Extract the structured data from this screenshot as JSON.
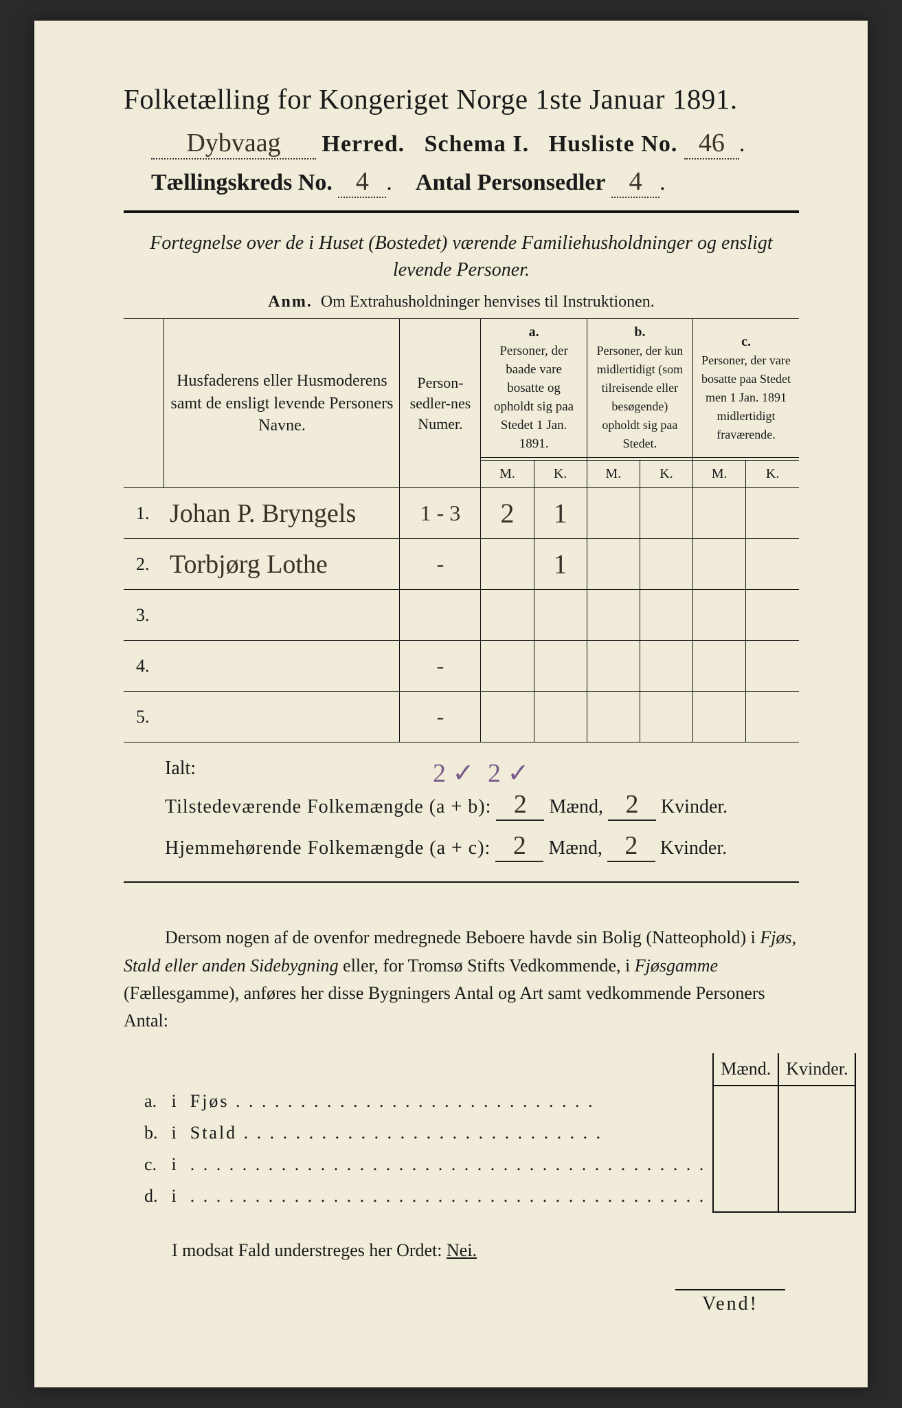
{
  "title": "Folketælling for Kongeriget Norge 1ste Januar 1891.",
  "header": {
    "herred_value": "Dybvaag",
    "herred_label": "Herred.",
    "schema_label": "Schema I.",
    "husliste_label": "Husliste No.",
    "husliste_no": "46",
    "kreds_label": "Tællingskreds No.",
    "kreds_no": "4",
    "antal_label": "Antal Personsedler",
    "antal_value": "4"
  },
  "subtitle": "Fortegnelse over de i Huset (Bostedet) værende Familiehusholdninger og ensligt levende Personer.",
  "anm_label": "Anm.",
  "anm_text": "Om Extrahusholdninger henvises til Instruktionen.",
  "table": {
    "col_names": "Husfaderens eller Husmoderens samt de ensligt levende Personers Navne.",
    "col_numer": "Person-sedler-nes Numer.",
    "col_a_hdr": "a.",
    "col_a": "Personer, der baade vare bosatte og opholdt sig paa Stedet 1 Jan. 1891.",
    "col_b_hdr": "b.",
    "col_b": "Personer, der kun midlertidigt (som tilreisende eller besøgende) opholdt sig paa Stedet.",
    "col_c_hdr": "c.",
    "col_c": "Personer, der vare bosatte paa Stedet men 1 Jan. 1891 midlertidigt fraværende.",
    "m": "M.",
    "k": "K.",
    "rows": [
      {
        "n": "1.",
        "name": "Johan P. Bryngels",
        "numer": "1 - 3",
        "a_m": "2",
        "a_k": "1",
        "b_m": "",
        "b_k": "",
        "c_m": "",
        "c_k": ""
      },
      {
        "n": "2.",
        "name": "Torbjørg Lothe",
        "numer": "-",
        "a_m": "",
        "a_k": "1",
        "b_m": "",
        "b_k": "",
        "c_m": "",
        "c_k": ""
      },
      {
        "n": "3.",
        "name": "",
        "numer": "",
        "a_m": "",
        "a_k": "",
        "b_m": "",
        "b_k": "",
        "c_m": "",
        "c_k": ""
      },
      {
        "n": "4.",
        "name": "",
        "numer": "-",
        "a_m": "",
        "a_k": "",
        "b_m": "",
        "b_k": "",
        "c_m": "",
        "c_k": ""
      },
      {
        "n": "5.",
        "name": "",
        "numer": "-",
        "a_m": "",
        "a_k": "",
        "b_m": "",
        "b_k": "",
        "c_m": "",
        "c_k": ""
      }
    ]
  },
  "totals": {
    "ialt_label": "Ialt:",
    "ialt_m": "2 ✓",
    "ialt_k": "2 ✓",
    "tilstede_label": "Tilstedeværende Folkemængde (a + b):",
    "tilstede_m": "2",
    "tilstede_k": "2",
    "hjemme_label": "Hjemmehørende Folkemængde (a + c):",
    "hjemme_m": "2",
    "hjemme_k": "2",
    "maend": "Mænd,",
    "kvinder": "Kvinder."
  },
  "para_text": "Dersom nogen af de ovenfor medregnede Beboere havde sin Bolig (Natteophold) i Fjøs, Stald eller anden Sidebygning eller, for Tromsø Stifts Vedkommende, i Fjøsgamme (Fællesgamme), anføres her disse Bygningers Antal og Art samt vedkommende Personers Antal:",
  "fjos": {
    "maend": "Mænd.",
    "kvinder": "Kvinder.",
    "rows": [
      {
        "a": "a.",
        "i": "i",
        "label": "Fjøs"
      },
      {
        "a": "b.",
        "i": "i",
        "label": "Stald"
      },
      {
        "a": "c.",
        "i": "i",
        "label": ""
      },
      {
        "a": "d.",
        "i": "i",
        "label": ""
      }
    ]
  },
  "modsat": "I modsat Fald understreges her Ordet:",
  "nei": "Nei.",
  "vend": "Vend!"
}
